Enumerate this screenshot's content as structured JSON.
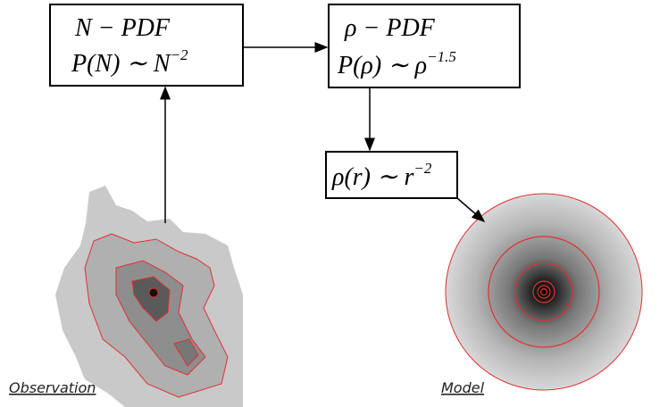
{
  "nodes": [
    {
      "line1": "N − PDF",
      "line2": {
        "main": "P(N) ∼ N",
        "sup": "−2"
      }
    },
    {
      "line1": "ρ − PDF",
      "line2": {
        "main": "P(ρ) ∼ ρ",
        "sup": "−1.5"
      }
    },
    {
      "line2": {
        "main": "ρ(r) ∼ r",
        "sup": "−2"
      }
    }
  ],
  "images": {
    "observation": "Observation",
    "model": "Model"
  }
}
